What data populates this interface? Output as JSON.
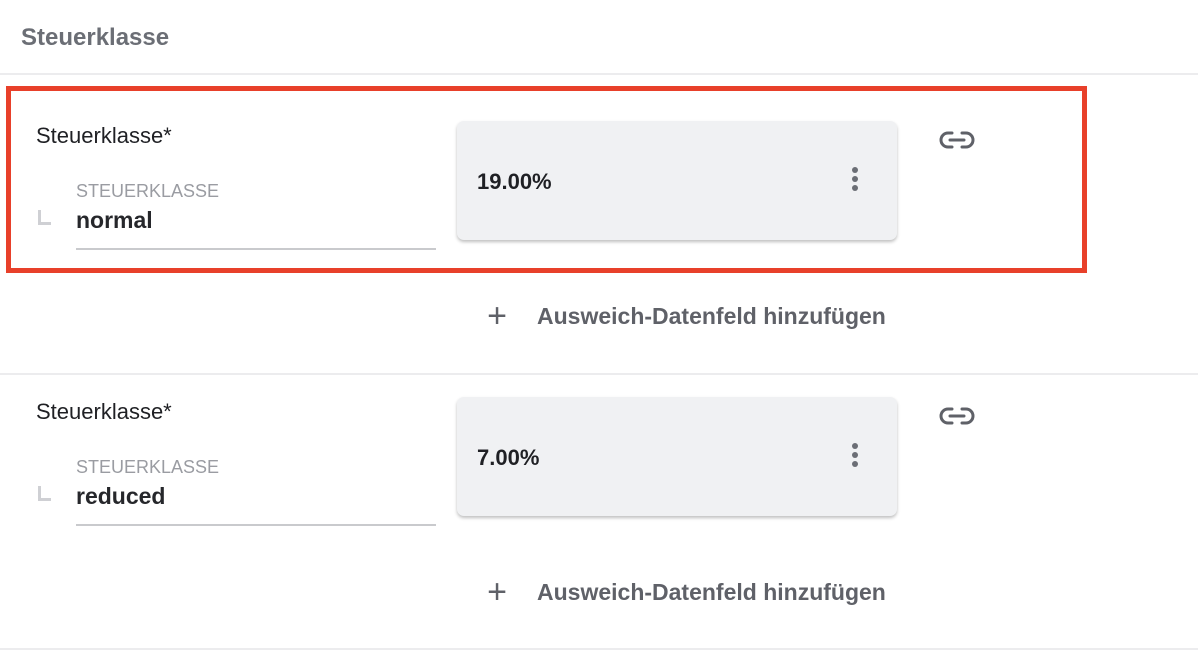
{
  "section": {
    "title": "Steuerklasse"
  },
  "rows": [
    {
      "label": "Steuerklasse*",
      "sublabel": "STEUERKLASSE",
      "value": "normal",
      "card_value": "19.00%",
      "add_label": "Ausweich-Datenfeld hinzufügen",
      "highlighted": true
    },
    {
      "label": "Steuerklasse*",
      "sublabel": "STEUERKLASSE",
      "value": "reduced",
      "card_value": "7.00%",
      "add_label": "Ausweich-Datenfeld hinzufügen",
      "highlighted": false
    }
  ],
  "icons": {
    "link": "link-icon",
    "more": "more-vert-icon",
    "add": "plus-icon",
    "nested": "nested-corner-icon"
  },
  "colors": {
    "highlight": "#e8402a",
    "card": "#f0f1f3",
    "muted_text": "#6b6e75"
  }
}
